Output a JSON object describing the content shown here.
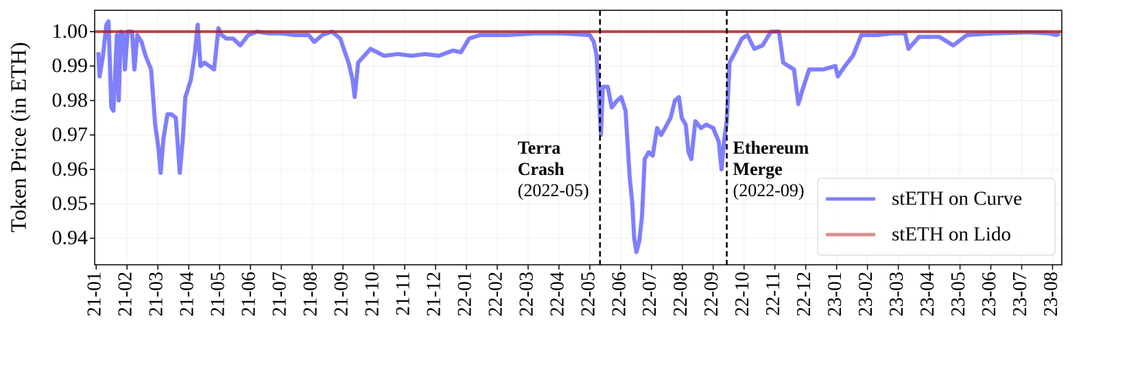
{
  "chart_data": {
    "type": "line",
    "ylabel": "Token Price (in ETH)",
    "xlim": [
      -0.05,
      31.3
    ],
    "xticks": [
      {
        "value": 0,
        "label": "21-01"
      },
      {
        "value": 1,
        "label": "21-02"
      },
      {
        "value": 2,
        "label": "21-03"
      },
      {
        "value": 3,
        "label": "21-04"
      },
      {
        "value": 4,
        "label": "21-05"
      },
      {
        "value": 5,
        "label": "21-06"
      },
      {
        "value": 6,
        "label": "21-07"
      },
      {
        "value": 7,
        "label": "21-08"
      },
      {
        "value": 8,
        "label": "21-09"
      },
      {
        "value": 9,
        "label": "21-10"
      },
      {
        "value": 10,
        "label": "21-11"
      },
      {
        "value": 11,
        "label": "21-12"
      },
      {
        "value": 12,
        "label": "22-01"
      },
      {
        "value": 13,
        "label": "22-02"
      },
      {
        "value": 14,
        "label": "22-03"
      },
      {
        "value": 15,
        "label": "22-04"
      },
      {
        "value": 16,
        "label": "22-05"
      },
      {
        "value": 17,
        "label": "22-06"
      },
      {
        "value": 18,
        "label": "22-07"
      },
      {
        "value": 19,
        "label": "22-08"
      },
      {
        "value": 20,
        "label": "22-09"
      },
      {
        "value": 21,
        "label": "22-10"
      },
      {
        "value": 22,
        "label": "22-11"
      },
      {
        "value": 23,
        "label": "22-12"
      },
      {
        "value": 24,
        "label": "23-01"
      },
      {
        "value": 25,
        "label": "23-02"
      },
      {
        "value": 26,
        "label": "23-03"
      },
      {
        "value": 27,
        "label": "23-04"
      },
      {
        "value": 28,
        "label": "23-05"
      },
      {
        "value": 29,
        "label": "23-06"
      },
      {
        "value": 30,
        "label": "23-07"
      },
      {
        "value": 31,
        "label": "23-08"
      }
    ],
    "ylim": [
      0.9323,
      1.0062
    ],
    "yticks": [
      0.94,
      0.95,
      0.96,
      0.97,
      0.98,
      0.99,
      {
        "value": 1,
        "label": "1.00"
      }
    ],
    "grid": true,
    "legend": "lower right",
    "vlines": [
      16.33,
      20.44
    ],
    "annotations": [
      {
        "x": 16.33,
        "side": "left",
        "lines": [
          "Terra",
          "Crash"
        ],
        "note": "(2022-05)"
      },
      {
        "x": 20.44,
        "side": "right",
        "lines": [
          "Ethereum",
          "Merge"
        ],
        "note": "(2022-09)"
      }
    ],
    "series": [
      {
        "name": "stETH on Curve",
        "color": "#0000ff",
        "x": [
          0.07,
          0.11,
          0.22,
          0.33,
          0.4,
          0.49,
          0.56,
          0.67,
          0.73,
          0.8,
          0.89,
          0.93,
          1.02,
          1.16,
          1.24,
          1.33,
          1.47,
          1.6,
          1.78,
          1.91,
          2.02,
          2.09,
          2.18,
          2.31,
          2.44,
          2.58,
          2.71,
          2.8,
          2.89,
          3.07,
          3.2,
          3.29,
          3.38,
          3.51,
          3.67,
          3.82,
          3.96,
          4.07,
          4.22,
          4.44,
          4.67,
          4.93,
          5.22,
          5.56,
          6,
          6.44,
          6.89,
          7.07,
          7.33,
          7.64,
          7.91,
          8.18,
          8.31,
          8.38,
          8.49,
          8.89,
          9.33,
          9.78,
          10.22,
          10.67,
          11.11,
          11.56,
          11.82,
          12.09,
          12.44,
          13.33,
          14.22,
          15.11,
          16,
          16.13,
          16.22,
          16.29,
          16.36,
          16.42,
          16.58,
          16.71,
          16.89,
          17.02,
          17.16,
          17.29,
          17.38,
          17.44,
          17.51,
          17.6,
          17.69,
          17.78,
          17.91,
          18.04,
          18.18,
          18.31,
          18.44,
          18.62,
          18.76,
          18.89,
          18.98,
          19.11,
          19.2,
          19.29,
          19.42,
          19.6,
          19.78,
          20,
          20.18,
          20.27,
          20.36,
          20.44,
          20.53,
          20.71,
          20.93,
          21.11,
          21.33,
          21.6,
          21.87,
          22.13,
          22.27,
          22.44,
          22.62,
          22.76,
          22.89,
          23.11,
          23.56,
          23.96,
          24.04,
          24.27,
          24.53,
          24.8,
          25.33,
          25.78,
          26.22,
          26.33,
          26.67,
          27.33,
          27.78,
          28.22,
          29.11,
          30.22,
          30.89,
          31.11,
          31.24
        ],
        "values": [
          0.994,
          0.987,
          0.993,
          1.002,
          1.003,
          0.978,
          0.977,
          0.999,
          0.98,
          1.0,
          0.999,
          0.989,
          1.0,
          1.0,
          0.989,
          0.999,
          0.997,
          0.993,
          0.989,
          0.973,
          0.966,
          0.959,
          0.969,
          0.976,
          0.976,
          0.975,
          0.959,
          0.968,
          0.981,
          0.986,
          0.994,
          1.002,
          0.99,
          0.991,
          0.99,
          0.989,
          1.001,
          0.999,
          0.998,
          0.998,
          0.996,
          0.999,
          1.0,
          0.9995,
          0.9995,
          0.999,
          0.999,
          0.997,
          0.999,
          1.0,
          0.998,
          0.991,
          0.986,
          0.981,
          0.991,
          0.995,
          0.993,
          0.9935,
          0.993,
          0.9935,
          0.993,
          0.9945,
          0.994,
          0.998,
          0.999,
          0.999,
          0.9995,
          0.9995,
          0.999,
          0.997,
          0.993,
          0.982,
          0.97,
          0.984,
          0.984,
          0.978,
          0.98,
          0.981,
          0.977,
          0.958,
          0.95,
          0.94,
          0.936,
          0.939,
          0.946,
          0.963,
          0.965,
          0.964,
          0.972,
          0.97,
          0.972,
          0.975,
          0.98,
          0.981,
          0.975,
          0.973,
          0.965,
          0.963,
          0.974,
          0.972,
          0.973,
          0.972,
          0.968,
          0.96,
          0.969,
          0.974,
          0.991,
          0.994,
          0.998,
          0.999,
          0.995,
          0.996,
          1.0,
          1.0,
          0.991,
          0.99,
          0.989,
          0.979,
          0.983,
          0.989,
          0.989,
          0.99,
          0.987,
          0.99,
          0.993,
          0.999,
          0.999,
          0.9995,
          0.9995,
          0.995,
          0.9985,
          0.9985,
          0.996,
          0.999,
          0.9995,
          0.9998,
          0.9995,
          0.999,
          0.9995
        ]
      },
      {
        "name": "stETH on Lido",
        "color": "#b22222",
        "x": [
          -0.05,
          31.3
        ],
        "values": [
          1.0,
          1.0
        ]
      }
    ]
  }
}
